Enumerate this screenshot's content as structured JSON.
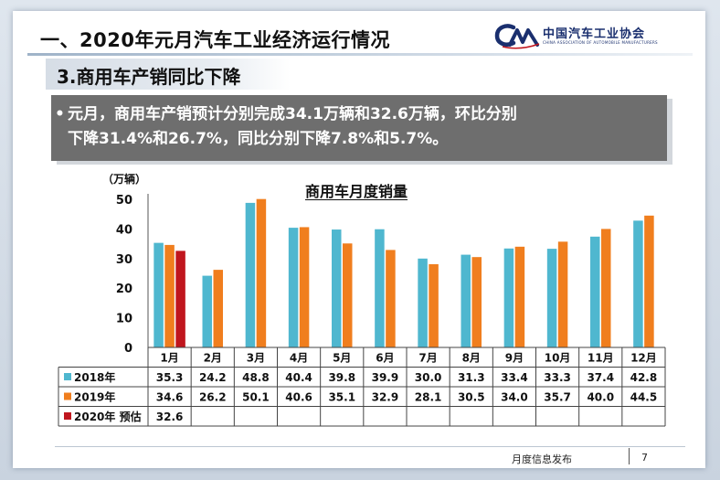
{
  "header": {
    "title": "一、2020年元月汽车工业经济运行情况",
    "logo_cn": "中国汽车工业协会",
    "logo_en": "CHINA ASSOCIATION OF AUTOMOBILE MANUFACTURERS"
  },
  "subtitle": "3.商用车产销同比下降",
  "callout": {
    "bullet": "•",
    "line1": "元月，商用车产销预计分别完成34.1万辆和32.6万辆，环比分别",
    "line2": "下降31.4%和26.7%，同比分别下降7.8%和5.7%。"
  },
  "footer": {
    "label": "月度信息发布",
    "page": "7"
  },
  "colors": {
    "s2018": "#4fb7cf",
    "s2019": "#f07e1e",
    "s2020": "#c0161e"
  },
  "chart_data": {
    "type": "bar",
    "title": "商用车月度销量",
    "ylabel": "（万辆）",
    "ylim": [
      0,
      50
    ],
    "yticks": [
      0,
      10,
      20,
      30,
      40,
      50
    ],
    "categories": [
      "1月",
      "2月",
      "3月",
      "4月",
      "5月",
      "6月",
      "7月",
      "8月",
      "9月",
      "10月",
      "11月",
      "12月"
    ],
    "series": [
      {
        "name": "2018年",
        "values": [
          35.3,
          24.2,
          48.8,
          40.4,
          39.8,
          39.9,
          30.0,
          31.3,
          33.4,
          33.3,
          37.4,
          42.8
        ]
      },
      {
        "name": "2019年",
        "values": [
          34.6,
          26.2,
          50.1,
          40.6,
          35.1,
          32.9,
          28.1,
          30.5,
          34.0,
          35.7,
          40.0,
          44.5
        ]
      },
      {
        "name": "2020年 预估",
        "values": [
          32.6,
          null,
          null,
          null,
          null,
          null,
          null,
          null,
          null,
          null,
          null,
          null
        ]
      }
    ],
    "legend": "table-rows",
    "grid": false
  }
}
